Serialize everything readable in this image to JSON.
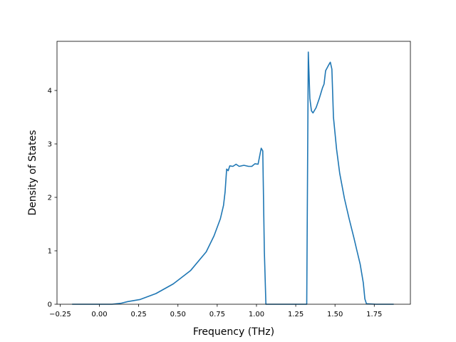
{
  "chart_data": {
    "type": "line",
    "xlabel": "Frequency (THz)",
    "ylabel": "Density of States",
    "xlim": [
      -0.27,
      1.98
    ],
    "ylim": [
      0,
      4.92
    ],
    "xticks": [
      -0.25,
      0.0,
      0.25,
      0.5,
      0.75,
      1.0,
      1.25,
      1.5,
      1.75
    ],
    "xtick_labels": [
      "−0.25",
      "0.00",
      "0.25",
      "0.50",
      "0.75",
      "1.00",
      "1.25",
      "1.50",
      "1.75"
    ],
    "yticks": [
      0,
      1,
      2,
      3,
      4
    ],
    "ytick_labels": [
      "0",
      "1",
      "2",
      "3",
      "4"
    ],
    "grid": false,
    "series": [
      {
        "color": "#1f77b4",
        "points": [
          [
            -0.17,
            0.0
          ],
          [
            0.0,
            0.0
          ],
          [
            0.08,
            0.0
          ],
          [
            0.14,
            0.02
          ],
          [
            0.18,
            0.05
          ],
          [
            0.26,
            0.09
          ],
          [
            0.36,
            0.2
          ],
          [
            0.47,
            0.38
          ],
          [
            0.58,
            0.63
          ],
          [
            0.68,
            0.98
          ],
          [
            0.73,
            1.28
          ],
          [
            0.77,
            1.6
          ],
          [
            0.79,
            1.85
          ],
          [
            0.8,
            2.1
          ],
          [
            0.81,
            2.53
          ],
          [
            0.82,
            2.5
          ],
          [
            0.83,
            2.59
          ],
          [
            0.85,
            2.58
          ],
          [
            0.87,
            2.62
          ],
          [
            0.89,
            2.58
          ],
          [
            0.92,
            2.6
          ],
          [
            0.95,
            2.58
          ],
          [
            0.97,
            2.58
          ],
          [
            0.99,
            2.63
          ],
          [
            1.01,
            2.62
          ],
          [
            1.03,
            2.92
          ],
          [
            1.04,
            2.87
          ],
          [
            1.05,
            1.0
          ],
          [
            1.06,
            0.0
          ],
          [
            1.32,
            0.0
          ],
          [
            1.33,
            4.72
          ],
          [
            1.34,
            3.85
          ],
          [
            1.35,
            3.62
          ],
          [
            1.36,
            3.58
          ],
          [
            1.38,
            3.68
          ],
          [
            1.4,
            3.85
          ],
          [
            1.42,
            4.05
          ],
          [
            1.43,
            4.12
          ],
          [
            1.44,
            4.37
          ],
          [
            1.46,
            4.48
          ],
          [
            1.47,
            4.53
          ],
          [
            1.48,
            4.4
          ],
          [
            1.49,
            3.5
          ],
          [
            1.51,
            2.9
          ],
          [
            1.53,
            2.45
          ],
          [
            1.56,
            1.98
          ],
          [
            1.59,
            1.6
          ],
          [
            1.62,
            1.25
          ],
          [
            1.64,
            1.0
          ],
          [
            1.66,
            0.75
          ],
          [
            1.68,
            0.4
          ],
          [
            1.69,
            0.1
          ],
          [
            1.7,
            0.01
          ],
          [
            1.76,
            0.0
          ],
          [
            1.87,
            0.0
          ]
        ]
      }
    ]
  }
}
